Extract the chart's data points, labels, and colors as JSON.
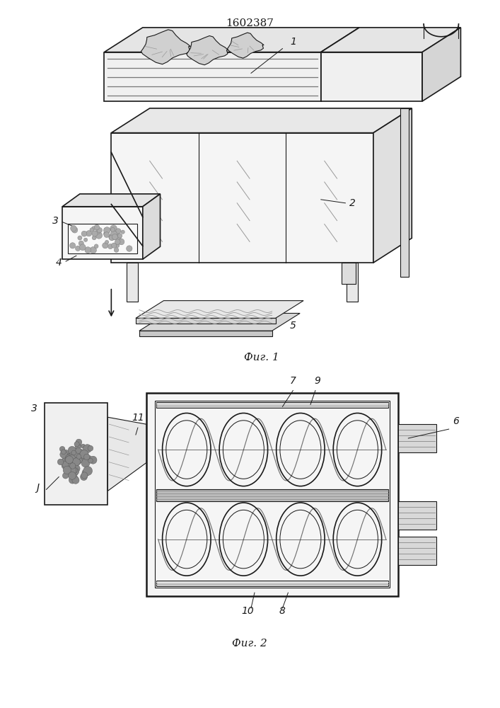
{
  "title": "1602387",
  "fig1_label": "Фиг. 1",
  "fig2_label": "Фиг. 2",
  "bg_color": "#ffffff",
  "line_color": "#1a1a1a"
}
